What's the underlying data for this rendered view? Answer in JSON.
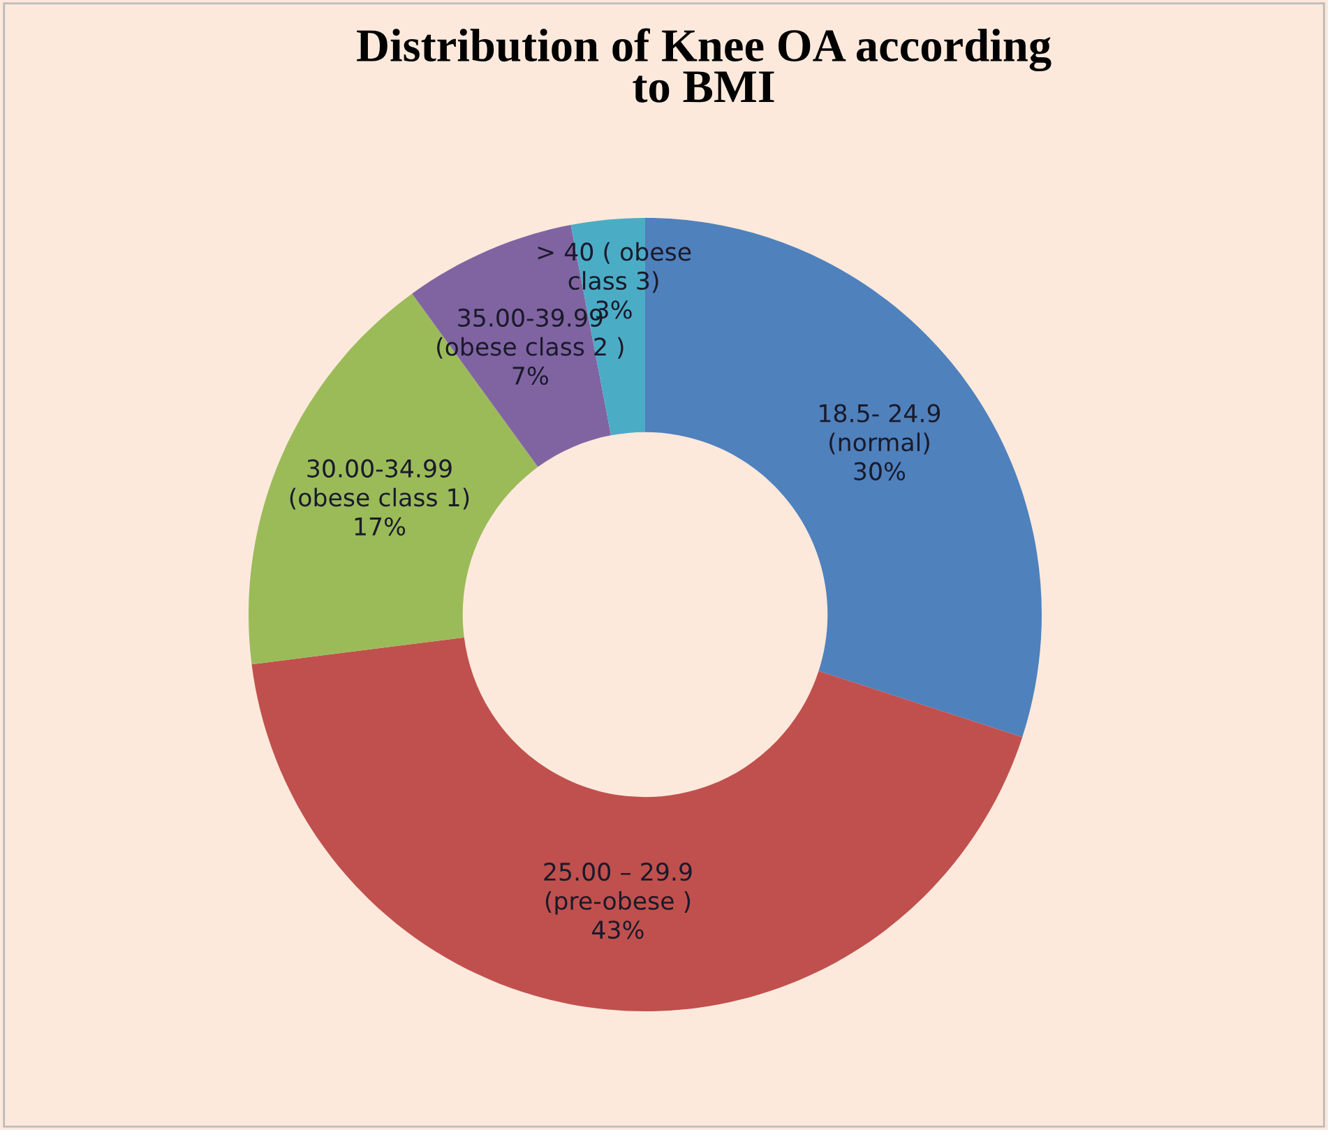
{
  "chart_data": {
    "type": "donut",
    "title": "Distribution of Knee OA according\nto BMI",
    "categories": [
      "18.5- 24.9\n(normal)",
      "25.00 – 29.9\n(pre-obese )",
      "30.00-34.99\n(obese class 1)",
      "35.00-39.99\n(obese class 2 )",
      "> 40 ( obese\nclass 3)"
    ],
    "values": [
      30,
      43,
      17,
      7,
      3
    ],
    "colors": [
      "#4f81bd",
      "#c0504d",
      "#9bbb59",
      "#8064a2",
      "#4bacc6"
    ],
    "value_labels": [
      "30%",
      "43%",
      "17%",
      "7%",
      "3%"
    ]
  }
}
